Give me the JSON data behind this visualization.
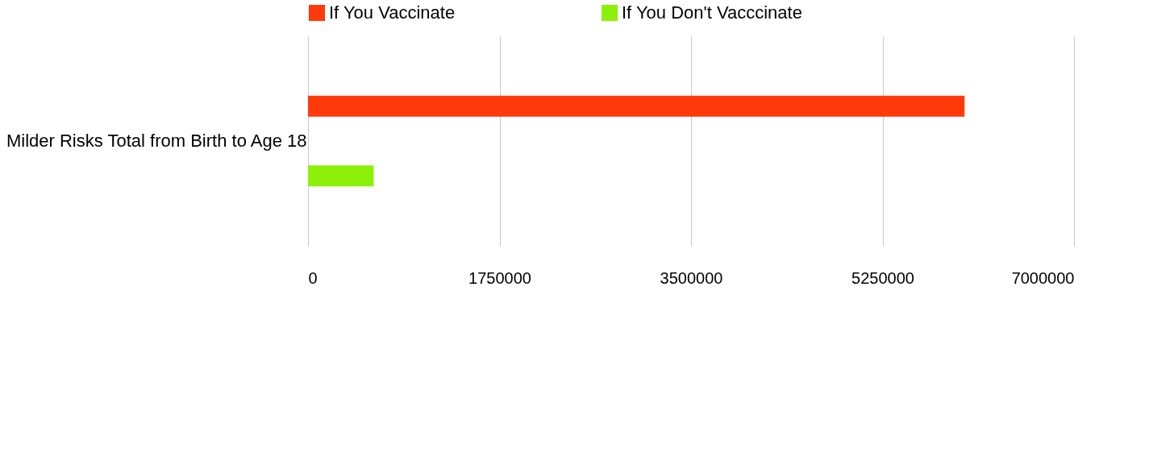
{
  "chart_data": {
    "type": "bar",
    "orientation": "horizontal",
    "categories": [
      "Milder Risks Total from Birth to Age 18"
    ],
    "series": [
      {
        "name": "If You Vaccinate",
        "color": "#ff3a0a",
        "values": [
          6000000
        ]
      },
      {
        "name": "If You Don't Vacccinate",
        "color": "#8cf00a",
        "values": [
          600000
        ]
      }
    ],
    "xlim": [
      0,
      7000000
    ],
    "xticks": [
      0,
      1750000,
      3500000,
      5250000,
      7000000
    ],
    "grid": "x",
    "legend": "top"
  }
}
